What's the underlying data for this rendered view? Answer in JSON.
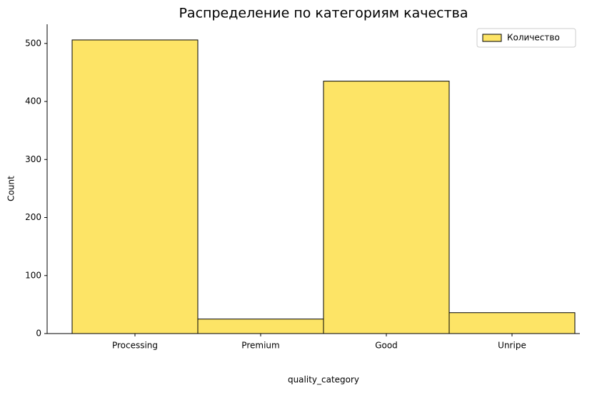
{
  "chart_data": {
    "type": "bar",
    "title": "Распределение по категориям качества",
    "x_label": "quality_category",
    "y_label": "Count",
    "categories": [
      "Processing",
      "Premium",
      "Good",
      "Unripe"
    ],
    "series": [
      {
        "name": "Количество",
        "color": "#fde466",
        "values": [
          506,
          25,
          435,
          36
        ]
      }
    ],
    "ylim": [
      0,
      533
    ],
    "yticks": [
      0,
      100,
      200,
      300,
      400,
      500
    ],
    "grid": false,
    "legend": "upper-right"
  }
}
